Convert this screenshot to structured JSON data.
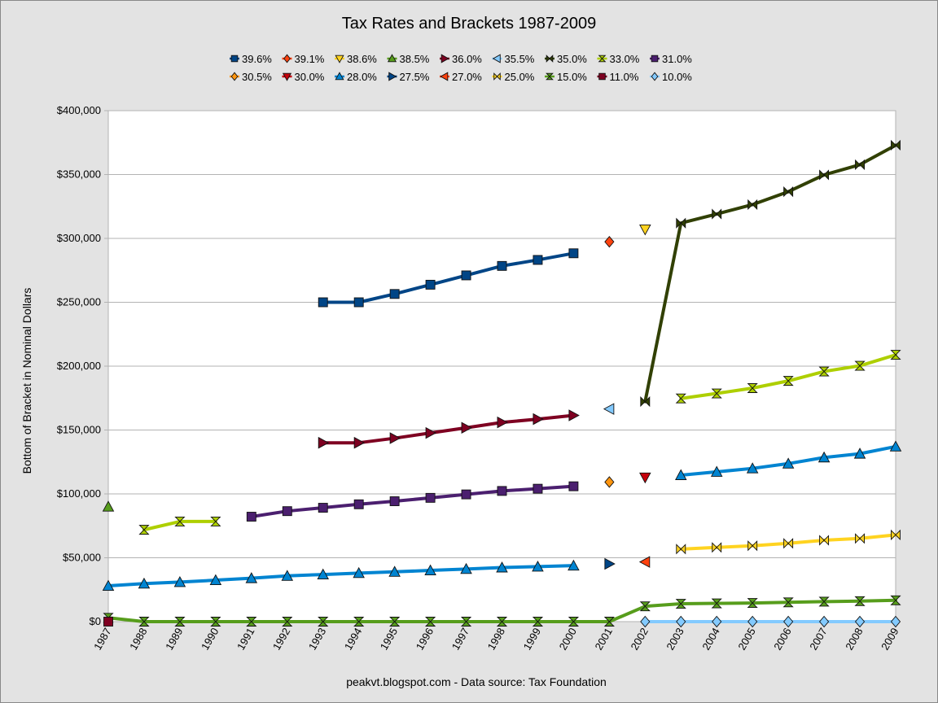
{
  "chart_data": {
    "type": "line",
    "title": "Tax Rates and Brackets 1987-2009",
    "xlabel": "",
    "ylabel": "Bottom of Bracket in Nominal Dollars",
    "source_note": "peakvt.blogspot.com - Data source: Tax Foundation",
    "ylim": [
      0,
      400000
    ],
    "y_ticks": [
      "$0",
      "$50,000",
      "$100,000",
      "$150,000",
      "$200,000",
      "$250,000",
      "$300,000",
      "$350,000",
      "$400,000"
    ],
    "x": [
      1987,
      1988,
      1989,
      1990,
      1991,
      1992,
      1993,
      1994,
      1995,
      1996,
      1997,
      1998,
      1999,
      2000,
      2001,
      2002,
      2003,
      2004,
      2005,
      2006,
      2007,
      2008,
      2009
    ],
    "grid": true,
    "legend_position": "top",
    "series": [
      {
        "name": "39.6%",
        "color": "#004586",
        "marker": "square",
        "values": [
          null,
          null,
          null,
          null,
          null,
          null,
          250000,
          250000,
          256500,
          263750,
          271050,
          278450,
          283150,
          288350,
          null,
          null,
          null,
          null,
          null,
          null,
          null,
          null,
          null
        ]
      },
      {
        "name": "39.1%",
        "color": "#ff420e",
        "marker": "diamond",
        "values": [
          null,
          null,
          null,
          null,
          null,
          null,
          null,
          null,
          null,
          null,
          null,
          null,
          null,
          null,
          297350,
          null,
          null,
          null,
          null,
          null,
          null,
          null,
          null
        ]
      },
      {
        "name": "38.6%",
        "color": "#ffd320",
        "marker": "tri-down",
        "values": [
          null,
          null,
          null,
          null,
          null,
          null,
          null,
          null,
          null,
          null,
          null,
          null,
          null,
          null,
          null,
          307050,
          null,
          null,
          null,
          null,
          null,
          null,
          null
        ]
      },
      {
        "name": "38.5%",
        "color": "#579d1c",
        "marker": "tri-up",
        "values": [
          90000,
          null,
          null,
          null,
          null,
          null,
          null,
          null,
          null,
          null,
          null,
          null,
          null,
          null,
          null,
          null,
          null,
          null,
          null,
          null,
          null,
          null,
          null
        ]
      },
      {
        "name": "36.0%",
        "color": "#7e0021",
        "marker": "tri-right",
        "values": [
          null,
          null,
          null,
          null,
          null,
          null,
          140000,
          140000,
          143600,
          147700,
          151750,
          155950,
          158550,
          161450,
          null,
          null,
          null,
          null,
          null,
          null,
          null,
          null,
          null
        ]
      },
      {
        "name": "35.5%",
        "color": "#83caff",
        "marker": "tri-left",
        "values": [
          null,
          null,
          null,
          null,
          null,
          null,
          null,
          null,
          null,
          null,
          null,
          null,
          null,
          null,
          166500,
          null,
          null,
          null,
          null,
          null,
          null,
          null,
          null
        ]
      },
      {
        "name": "35.0%",
        "color": "#314004",
        "marker": "bowtie",
        "values": [
          null,
          null,
          null,
          null,
          null,
          null,
          null,
          null,
          null,
          null,
          null,
          null,
          null,
          null,
          null,
          172250,
          311950,
          319100,
          326450,
          336550,
          349700,
          357700,
          372950
        ]
      },
      {
        "name": "33.0%",
        "color": "#aecf00",
        "marker": "hourglass",
        "values": [
          null,
          71900,
          78400,
          78400,
          null,
          null,
          null,
          null,
          null,
          null,
          null,
          null,
          null,
          null,
          null,
          null,
          174700,
          178650,
          182800,
          188450,
          195850,
          200300,
          208850
        ]
      },
      {
        "name": "31.0%",
        "color": "#4b1f6f",
        "marker": "square",
        "values": [
          null,
          null,
          null,
          null,
          82150,
          86500,
          89150,
          91850,
          94250,
          96900,
          99600,
          102300,
          104050,
          105950,
          null,
          null,
          null,
          null,
          null,
          null,
          null,
          null,
          null
        ]
      },
      {
        "name": "30.5%",
        "color": "#ff950e",
        "marker": "diamond",
        "values": [
          null,
          null,
          null,
          null,
          null,
          null,
          null,
          null,
          null,
          null,
          null,
          null,
          null,
          null,
          109250,
          null,
          null,
          null,
          null,
          null,
          null,
          null,
          null
        ]
      },
      {
        "name": "30.0%",
        "color": "#c5000b",
        "marker": "tri-down",
        "values": [
          null,
          null,
          null,
          null,
          null,
          null,
          null,
          null,
          null,
          null,
          null,
          null,
          null,
          null,
          null,
          112850,
          null,
          null,
          null,
          null,
          null,
          null,
          null
        ]
      },
      {
        "name": "28.0%",
        "color": "#0084d1",
        "marker": "tri-up",
        "values": [
          28000,
          29750,
          30950,
          32450,
          34000,
          35800,
          36900,
          38000,
          39000,
          40100,
          41200,
          42350,
          43050,
          43850,
          null,
          null,
          114650,
          117250,
          119950,
          123700,
          128500,
          131450,
          137050
        ]
      },
      {
        "name": "27.5%",
        "color": "#004586",
        "marker": "tri-right",
        "values": [
          null,
          null,
          null,
          null,
          null,
          null,
          null,
          null,
          null,
          null,
          null,
          null,
          null,
          null,
          45200,
          null,
          null,
          null,
          null,
          null,
          null,
          null,
          null
        ]
      },
      {
        "name": "27.0%",
        "color": "#ff420e",
        "marker": "tri-left",
        "values": [
          null,
          null,
          null,
          null,
          null,
          null,
          null,
          null,
          null,
          null,
          null,
          null,
          null,
          null,
          null,
          46700,
          null,
          null,
          null,
          null,
          null,
          null,
          null
        ]
      },
      {
        "name": "25.0%",
        "color": "#ffd320",
        "marker": "bowtie",
        "values": [
          null,
          null,
          null,
          null,
          null,
          null,
          null,
          null,
          null,
          null,
          null,
          null,
          null,
          null,
          null,
          null,
          56800,
          58100,
          59400,
          61300,
          63700,
          65100,
          67900
        ]
      },
      {
        "name": "15.0%",
        "color": "#579d1c",
        "marker": "hourglass",
        "values": [
          3000,
          0,
          0,
          0,
          0,
          0,
          0,
          0,
          0,
          0,
          0,
          0,
          0,
          0,
          0,
          12000,
          14000,
          14300,
          14600,
          15100,
          15650,
          16050,
          16700
        ]
      },
      {
        "name": "11.0%",
        "color": "#7e0021",
        "marker": "square",
        "values": [
          0,
          null,
          null,
          null,
          null,
          null,
          null,
          null,
          null,
          null,
          null,
          null,
          null,
          null,
          null,
          null,
          null,
          null,
          null,
          null,
          null,
          null,
          null
        ]
      },
      {
        "name": "10.0%",
        "color": "#83caff",
        "marker": "diamond",
        "values": [
          null,
          null,
          null,
          null,
          null,
          null,
          null,
          null,
          null,
          null,
          null,
          null,
          null,
          null,
          null,
          0,
          0,
          0,
          0,
          0,
          0,
          0,
          0
        ]
      }
    ]
  }
}
